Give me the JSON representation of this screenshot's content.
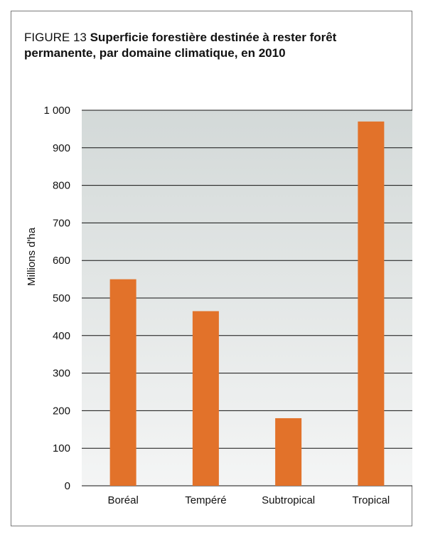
{
  "figure": {
    "number": "FIGURE 13",
    "title": "Superficie forestière destinée à rester forêt permanente, par domaine climatique, en 2010"
  },
  "chart_data": {
    "type": "bar",
    "title": "Superficie forestière destinée à rester forêt permanente, par domaine climatique, en 2010",
    "xlabel": "",
    "ylabel": "Millions d'ha",
    "categories": [
      "Boréal",
      "Tempéré",
      "Subtropical",
      "Tropical"
    ],
    "values": [
      550,
      465,
      180,
      970
    ],
    "ylim": [
      0,
      1000
    ],
    "yticks": [
      0,
      100,
      200,
      300,
      400,
      500,
      600,
      700,
      800,
      900,
      1000
    ],
    "ytick_labels": [
      "0",
      "100",
      "200",
      "300",
      "400",
      "500",
      "600",
      "700",
      "800",
      "900",
      "1 000"
    ],
    "grid": true,
    "legend": "none",
    "colors": {
      "bar": "#e2722a",
      "plot_top": "#d3d9d8",
      "plot_bottom": "#f4f5f5",
      "grid": "#111111"
    }
  }
}
